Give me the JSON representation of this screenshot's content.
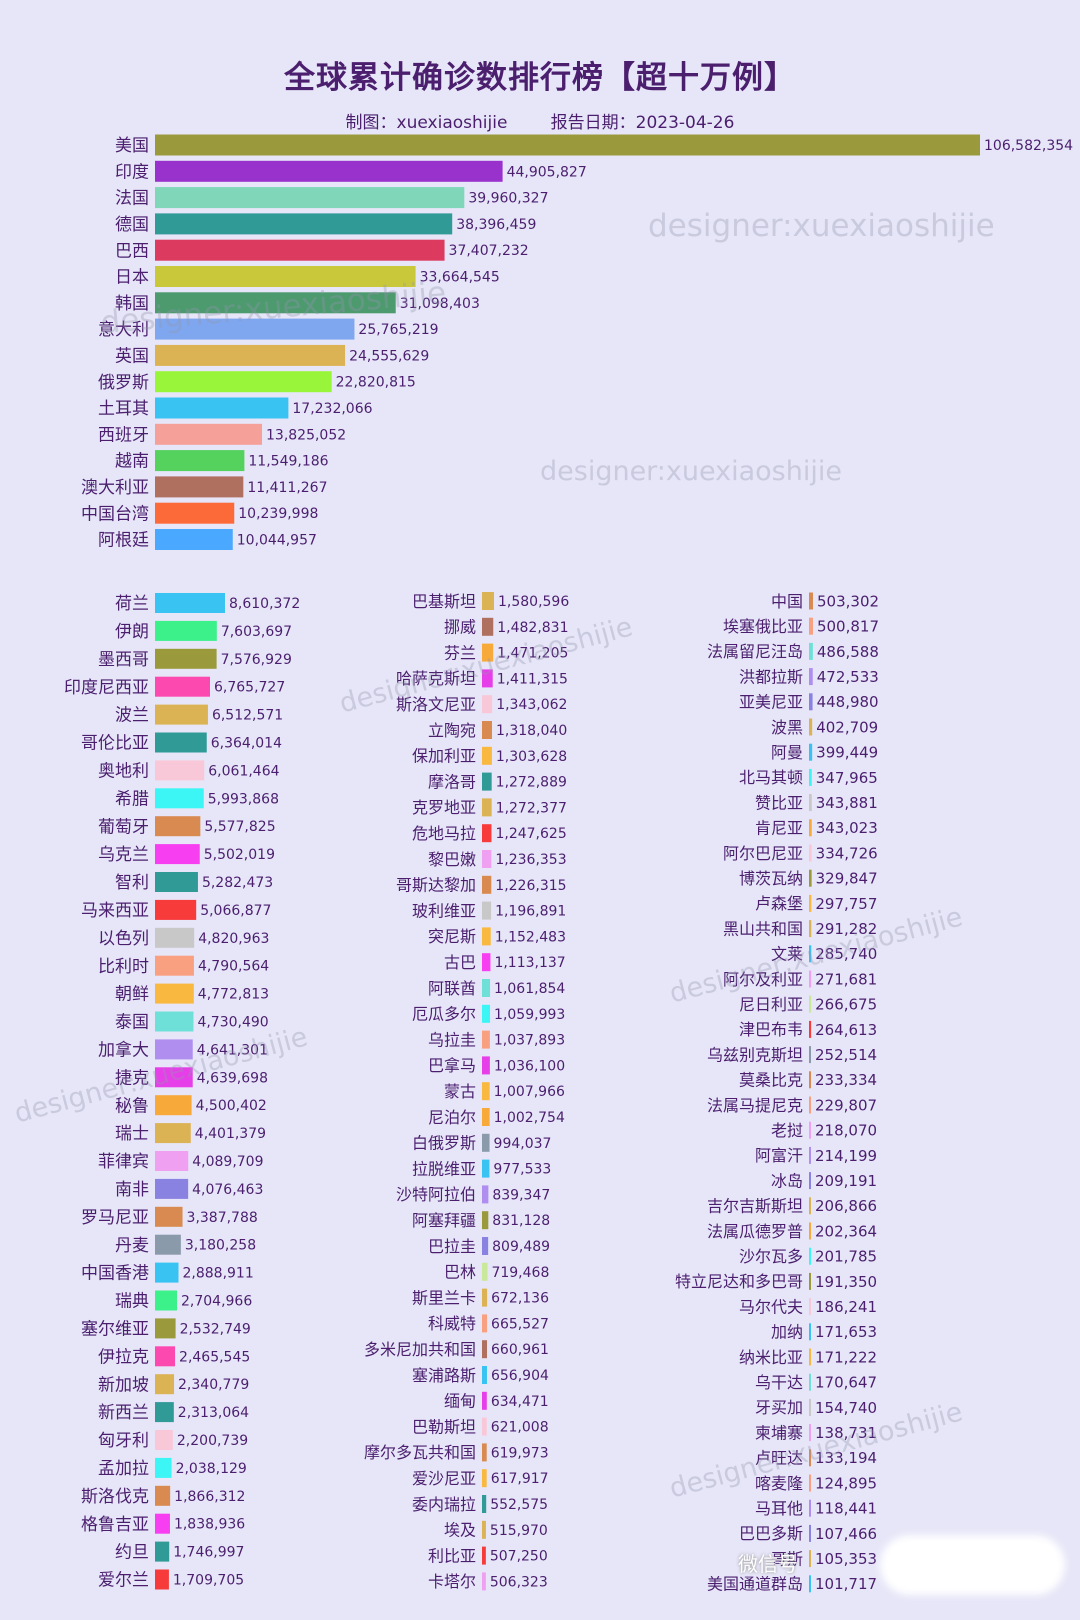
{
  "title": "全球累计确诊数排行榜【超十万例】",
  "subtitle": "制图：xuexiaoshijie        报告日期：2023-04-26",
  "watermark": "designer:xuexiaoshijie",
  "footer_badge": "微信号",
  "chart_data": {
    "type": "bar",
    "orientation": "horizontal",
    "title": "全球累计确诊数排行榜【超十万例】",
    "top": [
      {
        "name": "美国",
        "value": 106582354,
        "label": "106,582,354",
        "color": "#9a9a3c"
      },
      {
        "name": "印度",
        "value": 44905827,
        "label": "44,905,827",
        "color": "#9932cc"
      },
      {
        "name": "法国",
        "value": 39960327,
        "label": "39,960,327",
        "color": "#7fd6b8"
      },
      {
        "name": "德国",
        "value": 38396459,
        "label": "38,396,459",
        "color": "#2f9a96"
      },
      {
        "name": "巴西",
        "value": 37407232,
        "label": "37,407,232",
        "color": "#dc3a5e"
      },
      {
        "name": "日本",
        "value": 33664545,
        "label": "33,664,545",
        "color": "#c9c83a"
      },
      {
        "name": "韩国",
        "value": 31098403,
        "label": "31,098,403",
        "color": "#4c9a6e"
      },
      {
        "name": "意大利",
        "value": 25765219,
        "label": "25,765,219",
        "color": "#7ea7ef"
      },
      {
        "name": "英国",
        "value": 24555629,
        "label": "24,555,629",
        "color": "#dbb354"
      },
      {
        "name": "俄罗斯",
        "value": 22820815,
        "label": "22,820,815",
        "color": "#99f53a"
      },
      {
        "name": "土耳其",
        "value": 17232066,
        "label": "17,232,066",
        "color": "#38c3f2"
      },
      {
        "name": "西班牙",
        "value": 13825052,
        "label": "13,825,052",
        "color": "#f6a09a"
      },
      {
        "name": "越南",
        "value": 11549186,
        "label": "11,549,186",
        "color": "#55d15e"
      },
      {
        "name": "澳大利亚",
        "value": 11411267,
        "label": "11,411,267",
        "color": "#b07060"
      },
      {
        "name": "中国台湾",
        "value": 10239998,
        "label": "10,239,998",
        "color": "#fc6a3a"
      },
      {
        "name": "阿根廷",
        "value": 10044957,
        "label": "10,044,957",
        "color": "#4aa8ff"
      }
    ],
    "col1": [
      {
        "name": "荷兰",
        "value": 8610372,
        "label": "8,610,372",
        "color": "#38c3f2"
      },
      {
        "name": "伊朗",
        "value": 7603697,
        "label": "7,603,697",
        "color": "#3cf08a"
      },
      {
        "name": "墨西哥",
        "value": 7576929,
        "label": "7,576,929",
        "color": "#9a9a3c"
      },
      {
        "name": "印度尼西亚",
        "value": 6765727,
        "label": "6,765,727",
        "color": "#fc49b0"
      },
      {
        "name": "波兰",
        "value": 6512571,
        "label": "6,512,571",
        "color": "#dbb354"
      },
      {
        "name": "哥伦比亚",
        "value": 6364014,
        "label": "6,364,014",
        "color": "#2f9a96"
      },
      {
        "name": "奥地利",
        "value": 6061464,
        "label": "6,061,464",
        "color": "#f9c8d8"
      },
      {
        "name": "希腊",
        "value": 5993868,
        "label": "5,993,868",
        "color": "#3cf6f6"
      },
      {
        "name": "葡萄牙",
        "value": 5577825,
        "label": "5,577,825",
        "color": "#d98a50"
      },
      {
        "name": "乌克兰",
        "value": 5502019,
        "label": "5,502,019",
        "color": "#f73ef0"
      },
      {
        "name": "智利",
        "value": 5282473,
        "label": "5,282,473",
        "color": "#2f9a96"
      },
      {
        "name": "马来西亚",
        "value": 5066877,
        "label": "5,066,877",
        "color": "#f73a3a"
      },
      {
        "name": "以色列",
        "value": 4820963,
        "label": "4,820,963",
        "color": "#c8c8c8"
      },
      {
        "name": "比利时",
        "value": 4790564,
        "label": "4,790,564",
        "color": "#f9a080"
      },
      {
        "name": "朝鲜",
        "value": 4772813,
        "label": "4,772,813",
        "color": "#f9b840"
      },
      {
        "name": "泰国",
        "value": 4730490,
        "label": "4,730,490",
        "color": "#6ee0d8"
      },
      {
        "name": "加拿大",
        "value": 4641301,
        "label": "4,641,301",
        "color": "#b08ef0"
      },
      {
        "name": "捷克",
        "value": 4639698,
        "label": "4,639,698",
        "color": "#e63ee8"
      },
      {
        "name": "秘鲁",
        "value": 4500402,
        "label": "4,500,402",
        "color": "#f7a93a"
      },
      {
        "name": "瑞士",
        "value": 4401379,
        "label": "4,401,379",
        "color": "#dbb354"
      },
      {
        "name": "菲律宾",
        "value": 4089709,
        "label": "4,089,709",
        "color": "#f0a0f0"
      },
      {
        "name": "南非",
        "value": 4076463,
        "label": "4,076,463",
        "color": "#8a82e0"
      },
      {
        "name": "罗马尼亚",
        "value": 3387788,
        "label": "3,387,788",
        "color": "#d98a50"
      },
      {
        "name": "丹麦",
        "value": 3180258,
        "label": "3,180,258",
        "color": "#8a9aaa"
      },
      {
        "name": "中国香港",
        "value": 2888911,
        "label": "2,888,911",
        "color": "#38c3f2"
      },
      {
        "name": "瑞典",
        "value": 2704966,
        "label": "2,704,966",
        "color": "#3cf08a"
      },
      {
        "name": "塞尔维亚",
        "value": 2532749,
        "label": "2,532,749",
        "color": "#9a9a3c"
      },
      {
        "name": "伊拉克",
        "value": 2465545,
        "label": "2,465,545",
        "color": "#fc49b0"
      },
      {
        "name": "新加坡",
        "value": 2340779,
        "label": "2,340,779",
        "color": "#dbb354"
      },
      {
        "name": "新西兰",
        "value": 2313064,
        "label": "2,313,064",
        "color": "#2f9a96"
      },
      {
        "name": "匈牙利",
        "value": 2200739,
        "label": "2,200,739",
        "color": "#f9c8d8"
      },
      {
        "name": "孟加拉",
        "value": 2038129,
        "label": "2,038,129",
        "color": "#3cf6f6"
      },
      {
        "name": "斯洛伐克",
        "value": 1866312,
        "label": "1,866,312",
        "color": "#d98a50"
      },
      {
        "name": "格鲁吉亚",
        "value": 1838936,
        "label": "1,838,936",
        "color": "#f73ef0"
      },
      {
        "name": "约旦",
        "value": 1746997,
        "label": "1,746,997",
        "color": "#2f9a96"
      },
      {
        "name": "爱尔兰",
        "value": 1709705,
        "label": "1,709,705",
        "color": "#f73a3a"
      }
    ],
    "col2": [
      {
        "name": "巴基斯坦",
        "value": 1580596,
        "label": "1,580,596",
        "color": "#dbb354"
      },
      {
        "name": "挪威",
        "value": 1482831,
        "label": "1,482,831",
        "color": "#b07060"
      },
      {
        "name": "芬兰",
        "value": 1471205,
        "label": "1,471,205",
        "color": "#f7a93a"
      },
      {
        "name": "哈萨克斯坦",
        "value": 1411315,
        "label": "1,411,315",
        "color": "#e63ee8"
      },
      {
        "name": "斯洛文尼亚",
        "value": 1343062,
        "label": "1,343,062",
        "color": "#f9c8d8"
      },
      {
        "name": "立陶宛",
        "value": 1318040,
        "label": "1,318,040",
        "color": "#d98a50"
      },
      {
        "name": "保加利亚",
        "value": 1303628,
        "label": "1,303,628",
        "color": "#f9b840"
      },
      {
        "name": "摩洛哥",
        "value": 1272889,
        "label": "1,272,889",
        "color": "#2f9a96"
      },
      {
        "name": "克罗地亚",
        "value": 1272377,
        "label": "1,272,377",
        "color": "#dbb354"
      },
      {
        "name": "危地马拉",
        "value": 1247625,
        "label": "1,247,625",
        "color": "#f73a3a"
      },
      {
        "name": "黎巴嫩",
        "value": 1236353,
        "label": "1,236,353",
        "color": "#f0a0f0"
      },
      {
        "name": "哥斯达黎加",
        "value": 1226315,
        "label": "1,226,315",
        "color": "#d98a50"
      },
      {
        "name": "玻利维亚",
        "value": 1196891,
        "label": "1,196,891",
        "color": "#c8c8c8"
      },
      {
        "name": "突尼斯",
        "value": 1152483,
        "label": "1,152,483",
        "color": "#f9b840"
      },
      {
        "name": "古巴",
        "value": 1113137,
        "label": "1,113,137",
        "color": "#f73ef0"
      },
      {
        "name": "阿联酋",
        "value": 1061854,
        "label": "1,061,854",
        "color": "#6ee0d8"
      },
      {
        "name": "厄瓜多尔",
        "value": 1059993,
        "label": "1,059,993",
        "color": "#3cf6f6"
      },
      {
        "name": "乌拉圭",
        "value": 1037893,
        "label": "1,037,893",
        "color": "#f9a080"
      },
      {
        "name": "巴拿马",
        "value": 1036100,
        "label": "1,036,100",
        "color": "#e63ee8"
      },
      {
        "name": "蒙古",
        "value": 1007966,
        "label": "1,007,966",
        "color": "#f9b840"
      },
      {
        "name": "尼泊尔",
        "value": 1002754,
        "label": "1,002,754",
        "color": "#f7a93a"
      },
      {
        "name": "白俄罗斯",
        "value": 994037,
        "label": "994,037",
        "color": "#8a9aaa"
      },
      {
        "name": "拉脱维亚",
        "value": 977533,
        "label": "977,533",
        "color": "#38c3f2"
      },
      {
        "name": "沙特阿拉伯",
        "value": 839347,
        "label": "839,347",
        "color": "#b08ef0"
      },
      {
        "name": "阿塞拜疆",
        "value": 831128,
        "label": "831,128",
        "color": "#9a9a3c"
      },
      {
        "name": "巴拉圭",
        "value": 809489,
        "label": "809,489",
        "color": "#8a82e0"
      },
      {
        "name": "巴林",
        "value": 719468,
        "label": "719,468",
        "color": "#c9e89a"
      },
      {
        "name": "斯里兰卡",
        "value": 672136,
        "label": "672,136",
        "color": "#dbb354"
      },
      {
        "name": "科威特",
        "value": 665527,
        "label": "665,527",
        "color": "#f9a080"
      },
      {
        "name": "多米尼加共和国",
        "value": 660961,
        "label": "660,961",
        "color": "#b07060"
      },
      {
        "name": "塞浦路斯",
        "value": 656904,
        "label": "656,904",
        "color": "#38c3f2"
      },
      {
        "name": "缅甸",
        "value": 634471,
        "label": "634,471",
        "color": "#e63ee8"
      },
      {
        "name": "巴勒斯坦",
        "value": 621008,
        "label": "621,008",
        "color": "#f9c8d8"
      },
      {
        "name": "摩尔多瓦共和国",
        "value": 619973,
        "label": "619,973",
        "color": "#d98a50"
      },
      {
        "name": "爱沙尼亚",
        "value": 617917,
        "label": "617,917",
        "color": "#f9b840"
      },
      {
        "name": "委内瑞拉",
        "value": 552575,
        "label": "552,575",
        "color": "#2f9a96"
      },
      {
        "name": "埃及",
        "value": 515970,
        "label": "515,970",
        "color": "#dbb354"
      },
      {
        "name": "利比亚",
        "value": 507250,
        "label": "507,250",
        "color": "#f73a3a"
      },
      {
        "name": "卡塔尔",
        "value": 506323,
        "label": "506,323",
        "color": "#f0a0f0"
      }
    ],
    "col3": [
      {
        "name": "中国",
        "value": 503302,
        "label": "503,302",
        "color": "#d98a50"
      },
      {
        "name": "埃塞俄比亚",
        "value": 500817,
        "label": "500,817",
        "color": "#f9a080"
      },
      {
        "name": "法属留尼汪岛",
        "value": 486588,
        "label": "486,588",
        "color": "#6ee0d8"
      },
      {
        "name": "洪都拉斯",
        "value": 472533,
        "label": "472,533",
        "color": "#b08ef0"
      },
      {
        "name": "亚美尼亚",
        "value": 448980,
        "label": "448,980",
        "color": "#8a82e0"
      },
      {
        "name": "波黑",
        "value": 402709,
        "label": "402,709",
        "color": "#dbb354"
      },
      {
        "name": "阿曼",
        "value": 399449,
        "label": "399,449",
        "color": "#38c3f2"
      },
      {
        "name": "北马其顿",
        "value": 347965,
        "label": "347,965",
        "color": "#3cf6f6"
      },
      {
        "name": "赞比亚",
        "value": 343881,
        "label": "343,881",
        "color": "#c8c8c8"
      },
      {
        "name": "肯尼亚",
        "value": 343023,
        "label": "343,023",
        "color": "#f7a93a"
      },
      {
        "name": "阿尔巴尼亚",
        "value": 334726,
        "label": "334,726",
        "color": "#f9c8d8"
      },
      {
        "name": "博茨瓦纳",
        "value": 329847,
        "label": "329,847",
        "color": "#9a9a3c"
      },
      {
        "name": "卢森堡",
        "value": 297757,
        "label": "297,757",
        "color": "#f9b840"
      },
      {
        "name": "黑山共和国",
        "value": 291282,
        "label": "291,282",
        "color": "#dbb354"
      },
      {
        "name": "文莱",
        "value": 285740,
        "label": "285,740",
        "color": "#38c3f2"
      },
      {
        "name": "阿尔及利亚",
        "value": 271681,
        "label": "271,681",
        "color": "#f0a0f0"
      },
      {
        "name": "尼日利亚",
        "value": 266675,
        "label": "266,675",
        "color": "#c9e89a"
      },
      {
        "name": "津巴布韦",
        "value": 264613,
        "label": "264,613",
        "color": "#f73a3a"
      },
      {
        "name": "乌兹别克斯坦",
        "value": 252514,
        "label": "252,514",
        "color": "#8a9aaa"
      },
      {
        "name": "莫桑比克",
        "value": 233334,
        "label": "233,334",
        "color": "#d98a50"
      },
      {
        "name": "法属马提尼克",
        "value": 229807,
        "label": "229,807",
        "color": "#f9a080"
      },
      {
        "name": "老挝",
        "value": 218070,
        "label": "218,070",
        "color": "#f0a0f0"
      },
      {
        "name": "阿富汗",
        "value": 214199,
        "label": "214,199",
        "color": "#b08ef0"
      },
      {
        "name": "冰岛",
        "value": 209191,
        "label": "209,191",
        "color": "#8a82e0"
      },
      {
        "name": "吉尔吉斯斯坦",
        "value": 206866,
        "label": "206,866",
        "color": "#dbb354"
      },
      {
        "name": "法属瓜德罗普",
        "value": 202364,
        "label": "202,364",
        "color": "#f7a93a"
      },
      {
        "name": "沙尔瓦多",
        "value": 201785,
        "label": "201,785",
        "color": "#3cf6f6"
      },
      {
        "name": "特立尼达和多巴哥",
        "value": 191350,
        "label": "191,350",
        "color": "#9a9a3c"
      },
      {
        "name": "马尔代夫",
        "value": 186241,
        "label": "186,241",
        "color": "#f9c8d8"
      },
      {
        "name": "加纳",
        "value": 171653,
        "label": "171,653",
        "color": "#38c3f2"
      },
      {
        "name": "纳米比亚",
        "value": 171222,
        "label": "171,222",
        "color": "#f9b840"
      },
      {
        "name": "乌干达",
        "value": 170647,
        "label": "170,647",
        "color": "#6ee0d8"
      },
      {
        "name": "牙买加",
        "value": 154740,
        "label": "154,740",
        "color": "#c8c8c8"
      },
      {
        "name": "柬埔寨",
        "value": 138731,
        "label": "138,731",
        "color": "#f0a0f0"
      },
      {
        "name": "卢旺达",
        "value": 133194,
        "label": "133,194",
        "color": "#d98a50"
      },
      {
        "name": "喀麦隆",
        "value": 124895,
        "label": "124,895",
        "color": "#f9a080"
      },
      {
        "name": "马耳他",
        "value": 118441,
        "label": "118,441",
        "color": "#b08ef0"
      },
      {
        "name": "巴巴多斯",
        "value": 107466,
        "label": "107,466",
        "color": "#8a82e0"
      },
      {
        "name": "哥斯",
        "value": 105353,
        "label": "105,353",
        "color": "#dbb354"
      },
      {
        "name": "美国通道群岛",
        "value": 101717,
        "label": "101,717",
        "color": "#38c3f2"
      }
    ]
  }
}
